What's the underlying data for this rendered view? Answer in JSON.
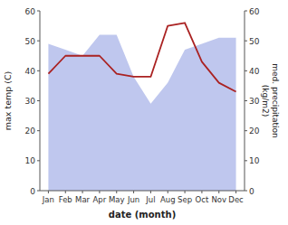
{
  "chart_data": {
    "type": "line",
    "xlabel": "date (month)",
    "ylabel": "max temp (C)",
    "y2label": "med. precipitation\n(kg/m2)",
    "categories": [
      "Jan",
      "Feb",
      "Mar",
      "Apr",
      "May",
      "Jun",
      "Jul",
      "Aug",
      "Sep",
      "Oct",
      "Nov",
      "Dec"
    ],
    "series": [
      {
        "type": "area",
        "axis": "y2",
        "color": "#aab4e8",
        "values": [
          49,
          47,
          45,
          52,
          52,
          38,
          29,
          36,
          47,
          49,
          51,
          51
        ]
      },
      {
        "type": "line",
        "color": "#aa2222",
        "values": [
          39,
          45,
          45,
          45,
          39,
          38,
          38,
          55,
          56,
          43,
          36,
          33
        ]
      }
    ],
    "ylim": [
      0,
      60
    ],
    "yticks": [
      0,
      10,
      20,
      30,
      40,
      50,
      60
    ],
    "y2lim": [
      0,
      60
    ],
    "y2ticks": [
      0,
      10,
      20,
      30,
      40,
      50,
      60
    ],
    "grid": false
  }
}
